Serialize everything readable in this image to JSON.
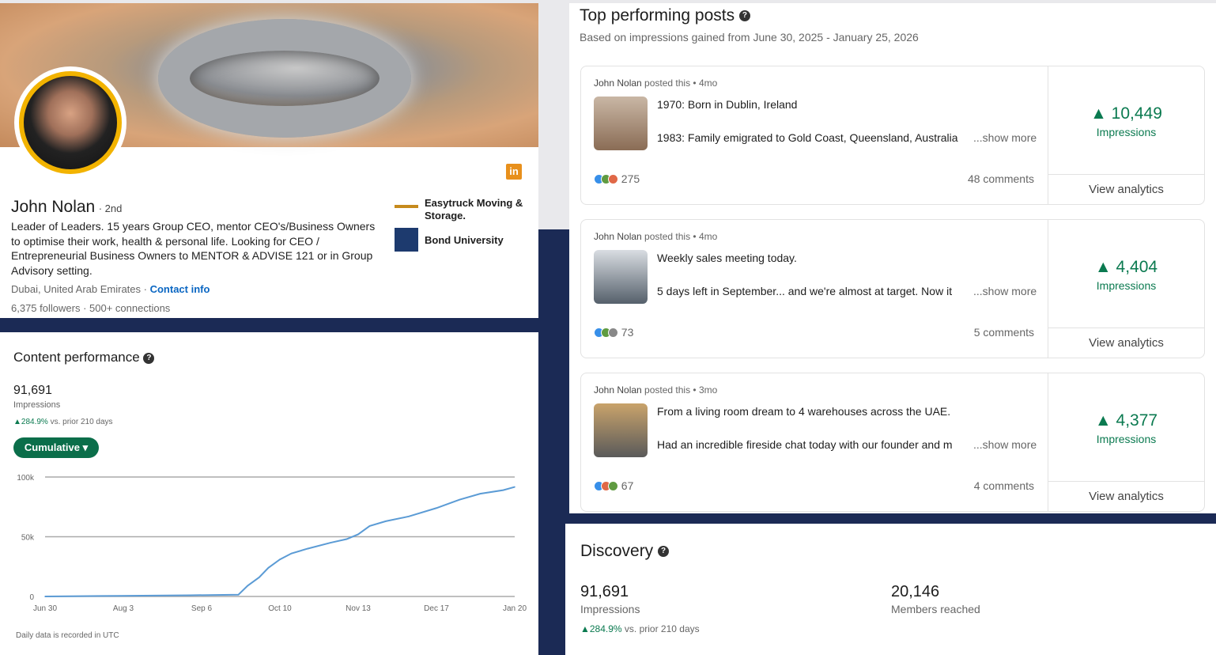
{
  "profile": {
    "name": "John Nolan",
    "degree": "· 2nd",
    "headline": "Leader of Leaders. 15 years Group CEO, mentor CEO's/Business Owners to optimise their work, health & personal life. Looking for CEO / Entrepreneurial Business Owners to MENTOR & ADVISE 121 or in Group Advisory setting.",
    "location": "Dubai, United Arab Emirates ·",
    "contact_link": "Contact info",
    "followers": "6,375 followers",
    "connections": "· 500+ connections",
    "experience": [
      {
        "name": "Easytruck Moving & Storage."
      },
      {
        "name": "Bond University"
      }
    ],
    "linkedin_icon": "linkedin-icon",
    "accent": "#0a66c2"
  },
  "content_performance": {
    "title": "Content performance",
    "total": "91,691",
    "label": "Impressions",
    "change": "▲284.9%",
    "change_text": " vs. prior 210 days",
    "dropdown": "Cumulative ▾",
    "footnote": "Daily data is recorded in UTC"
  },
  "chart_data": {
    "type": "line",
    "title": "",
    "xlabel": "",
    "ylabel": "",
    "x_ticks": [
      "Jun 30",
      "Aug 3",
      "Sep 6",
      "Oct 10",
      "Nov 13",
      "Dec 17",
      "Jan 20"
    ],
    "y_ticks": [
      "0",
      "50k",
      "100k"
    ],
    "ylim": [
      0,
      100000
    ],
    "grid": true,
    "series": [
      {
        "color": "#5b9bd5",
        "x": [
          "2025-06-30",
          "2025-08-01",
          "2025-09-01",
          "2025-09-22",
          "2025-09-26",
          "2025-10-01",
          "2025-10-05",
          "2025-10-10",
          "2025-10-15",
          "2025-10-22",
          "2025-11-01",
          "2025-11-08",
          "2025-11-13",
          "2025-11-18",
          "2025-11-25",
          "2025-12-05",
          "2025-12-17",
          "2025-12-27",
          "2026-01-05",
          "2026-01-15",
          "2026-01-25"
        ],
        "y": [
          0,
          500,
          1000,
          1500,
          9000,
          16000,
          24000,
          31000,
          36000,
          40000,
          45000,
          48000,
          52000,
          59000,
          63000,
          67000,
          74000,
          81000,
          86000,
          89000,
          91691
        ]
      }
    ]
  },
  "top_posts": {
    "title": "Top performing posts",
    "subtitle": "Based on impressions gained from June 30, 2025 - January 25, 2026",
    "posts": [
      {
        "author": "John Nolan",
        "meta": " posted this • 4mo",
        "line1": "1970: Born in Dublin, Ireland",
        "line2": "1983: Family emigrated to Gold Coast, Queensland, Australia",
        "more": "...show more",
        "reactions": "275",
        "comments": "48 comments",
        "impressions": "▲ 10,449",
        "impressions_label": "Impressions",
        "analytics": "View analytics"
      },
      {
        "author": "John Nolan",
        "meta": " posted this • 4mo",
        "line1": "Weekly sales meeting today.",
        "line2": "5 days left in September... and we're almost at target. Now it",
        "more": "...show more",
        "reactions": "73",
        "comments": "5 comments",
        "impressions": "▲ 4,404",
        "impressions_label": "Impressions",
        "analytics": "View analytics"
      },
      {
        "author": "John Nolan",
        "meta": " posted this • 3mo",
        "line1": "From a living room dream to 4 warehouses across the UAE.",
        "line2": "Had an incredible fireside chat today with our founder and m",
        "more": "...show more",
        "reactions": "67",
        "comments": "4 comments",
        "impressions": "▲ 4,377",
        "impressions_label": "Impressions",
        "analytics": "View analytics"
      }
    ]
  },
  "discovery": {
    "title": "Discovery",
    "impressions": "91,691",
    "impressions_label": "Impressions",
    "change": "▲284.9%",
    "change_text": " vs. prior 210 days",
    "members": "20,146",
    "members_label": "Members reached"
  }
}
